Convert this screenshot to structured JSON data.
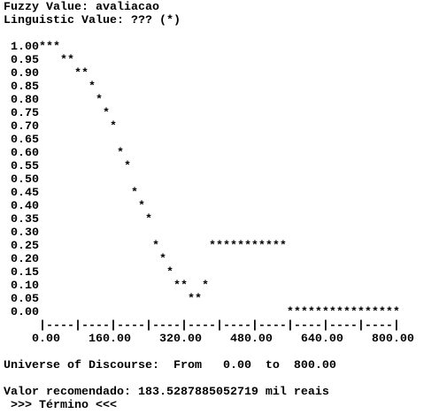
{
  "header": [
    "Fuzzy Value: avaliacao",
    "Linguistic Value: ??? (*)"
  ],
  "plot": [
    " 1.00***",
    " 0.95   **",
    " 0.90     **",
    " 0.85       *",
    " 0.80        *",
    " 0.75         *",
    " 0.70          *",
    " 0.65",
    " 0.60           *",
    " 0.55            *",
    " 0.50",
    " 0.45             *",
    " 0.40              *",
    " 0.35               *",
    " 0.30",
    " 0.25                *       ***********",
    " 0.20                 *",
    " 0.15                  *",
    " 0.10                   **  *",
    " 0.05                     **",
    " 0.00                                   ****************",
    "     |----|----|----|----|----|----|----|----|----|----|",
    "    0.00    160.00    320.00    480.00    640.00    800.00"
  ],
  "universe": "Universe of Discourse:  From   0.00  to  800.00",
  "result": "Valor recomendado: 183.5287885052719 mil reais",
  "end": " >>> Término <<<"
}
